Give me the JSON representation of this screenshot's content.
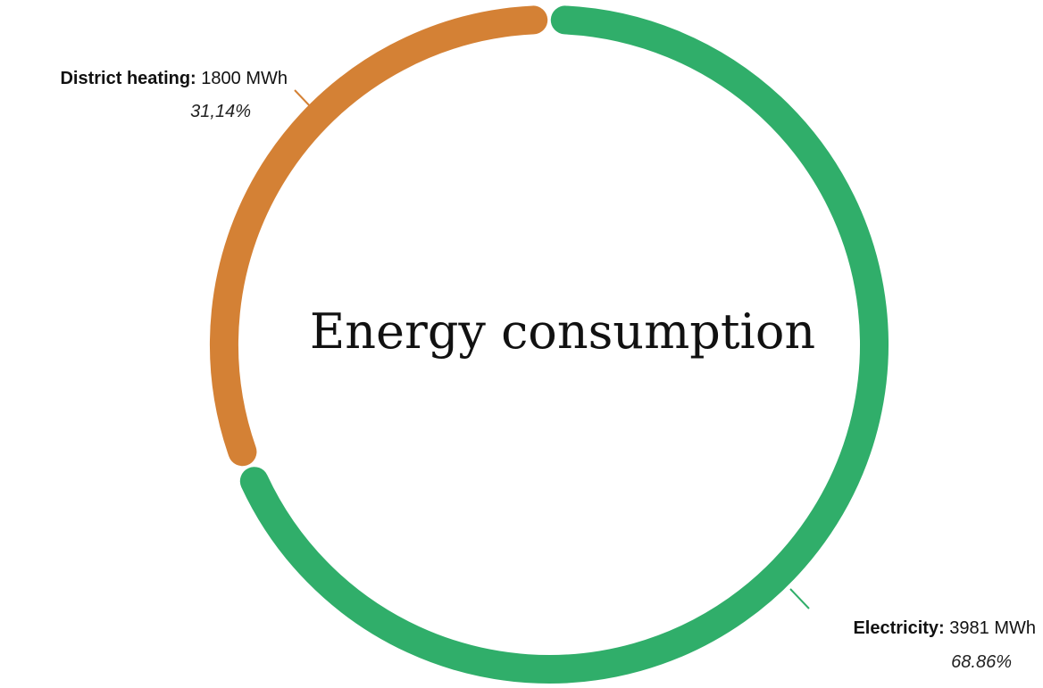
{
  "chart_data": {
    "type": "pie",
    "title": "Energy consumption",
    "unit": "MWh",
    "slices": [
      {
        "name": "Electricity",
        "value": 3981,
        "value_label": "3981 MWh",
        "percent_label": "68.86%",
        "color": "#30ae6a"
      },
      {
        "name": "District heating",
        "value": 1800,
        "value_label": "1800 MWh",
        "percent_label": "31,14%",
        "color": "#d48135"
      }
    ]
  }
}
